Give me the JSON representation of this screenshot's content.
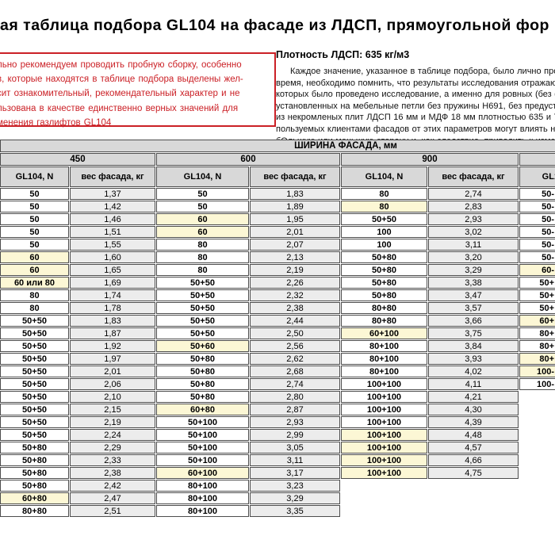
{
  "title": "ая таблица подбора GL104 на фасаде из ЛДСП, прямоугольной фор",
  "warning_box": {
    "text_color": "#cb2026",
    "lines": [
      "льно рекомендуем проводить пробную сборку, особенно",
      "в, которые находятся в таблице подбора выделены жел-",
      "сит ознакомительный, рекомендательный характер и не",
      "льзована в качестве единственно верных значений для",
      "менения газлифтов GL104"
    ]
  },
  "info": {
    "heading": "Плотность ЛДСП: 635 кг/м3",
    "lines": [
      "Каждое значение, указанное в таблице подбора, было лично провер",
      "время, необходимо помнить, что результаты исследования отражают реал",
      "которых было проведено исследование, а именно для ровных (без фрезер",
      "установленных на мебельные петли без пружины Н691, без предустановлен",
      "из некромленых плит ЛДСП 16 мм и МДФ 18 мм плотностью 635 и 786  кг/м3",
      "пользуемых клиентами фасадов от этих параметров могут влиять на пере",
      "бОльшую или меньшую сторону и, как следствие, приводить к измененным"
    ]
  },
  "table": {
    "title": "ШИРИНА ФАСАДА, мм",
    "gl_header": "GL104, N",
    "weight_header": "вес фасада, кг",
    "highlight_color": "#fcf7d5",
    "groups": [
      {
        "label": "450",
        "gl": [
          "50",
          "50",
          "50",
          "50",
          "50",
          "60",
          "60",
          "60 или 80",
          "80",
          "80",
          "50+50",
          "50+50",
          "50+50",
          "50+50",
          "50+50",
          "50+50",
          "50+50",
          "50+50",
          "50+50",
          "50+50",
          "50+80",
          "50+80",
          "50+80",
          "50+80",
          "60+80",
          "80+80"
        ],
        "weight": [
          "1,37",
          "1,42",
          "1,46",
          "1,51",
          "1,55",
          "1,60",
          "1,65",
          "1,69",
          "1,74",
          "1,78",
          "1,83",
          "1,87",
          "1,92",
          "1,97",
          "2,01",
          "2,06",
          "2,10",
          "2,15",
          "2,19",
          "2,24",
          "2,29",
          "2,33",
          "2,38",
          "2,42",
          "2,47",
          "2,51"
        ],
        "highlight": [
          5,
          6,
          7,
          24
        ],
        "clipped": false
      },
      {
        "label": "600",
        "gl": [
          "50",
          "50",
          "60",
          "60",
          "80",
          "80",
          "80",
          "50+50",
          "50+50",
          "50+50",
          "50+50",
          "50+50",
          "50+60",
          "50+80",
          "50+80",
          "50+80",
          "50+80",
          "60+80",
          "50+100",
          "50+100",
          "50+100",
          "50+100",
          "60+100",
          "80+100",
          "80+100",
          "80+100"
        ],
        "weight": [
          "1,83",
          "1,89",
          "1,95",
          "2,01",
          "2,07",
          "2,13",
          "2,19",
          "2,26",
          "2,32",
          "2,38",
          "2,44",
          "2,50",
          "2,56",
          "2,62",
          "2,68",
          "2,74",
          "2,80",
          "2,87",
          "2,93",
          "2,99",
          "3,05",
          "3,11",
          "3,17",
          "3,23",
          "3,29",
          "3,35"
        ],
        "highlight": [
          2,
          3,
          12,
          17,
          22
        ],
        "clipped": false
      },
      {
        "label": "900",
        "gl": [
          "80",
          "80",
          "50+50",
          "100",
          "100",
          "50+80",
          "50+80",
          "50+80",
          "50+80",
          "80+80",
          "80+80",
          "60+100",
          "80+100",
          "80+100",
          "80+100",
          "100+100",
          "100+100",
          "100+100",
          "100+100",
          "100+100",
          "100+100",
          "100+100",
          "100+100"
        ],
        "weight": [
          "2,74",
          "2,83",
          "2,93",
          "3,02",
          "3,11",
          "3,20",
          "3,29",
          "3,38",
          "3,47",
          "3,57",
          "3,66",
          "3,75",
          "3,84",
          "3,93",
          "4,02",
          "4,11",
          "4,21",
          "4,30",
          "4,39",
          "4,48",
          "4,57",
          "4,66",
          "4,75"
        ],
        "highlight": [
          1,
          11,
          19,
          20,
          21,
          22
        ],
        "clipped": false
      },
      {
        "label": "",
        "gl": [
          "50-",
          "50-",
          "50-",
          "50-",
          "50-",
          "50-",
          "60-",
          "50+",
          "50+",
          "50+",
          "60+",
          "80+",
          "80+",
          "80+",
          "100-",
          "100-"
        ],
        "weight": [],
        "highlight": [
          6,
          10,
          13,
          14
        ],
        "clipped": true
      }
    ]
  }
}
